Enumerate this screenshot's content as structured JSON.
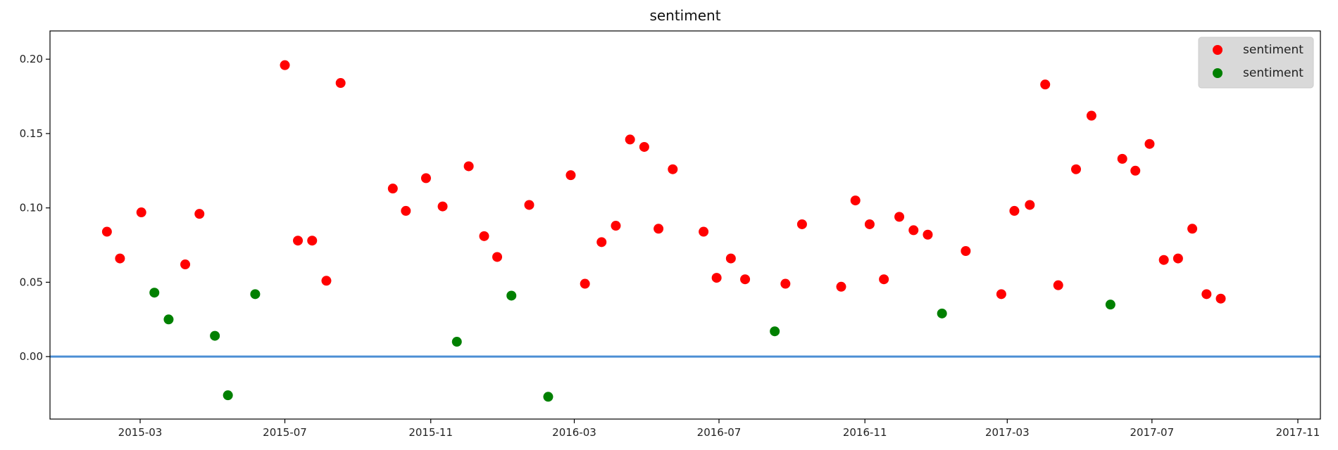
{
  "chart_data": {
    "type": "scatter",
    "title": "sentiment",
    "xlabel": "",
    "ylabel": "",
    "x_ticks": [
      "2015-03",
      "2015-07",
      "2015-11",
      "2016-03",
      "2016-07",
      "2016-11",
      "2017-03",
      "2017-07",
      "2017-11"
    ],
    "y_ticks": [
      "0.00",
      "0.05",
      "0.10",
      "0.15",
      "0.20"
    ],
    "xlim": [
      "2014-12-15",
      "2017-11-20"
    ],
    "ylim": [
      -0.042,
      0.219
    ],
    "grid": false,
    "legend_position": "top-right",
    "reference_line": {
      "y": 0.0,
      "color": "#4c8fd4"
    },
    "series": [
      {
        "name": "sentiment",
        "color": "#ff0000",
        "points": [
          [
            "2015-02-01",
            0.084
          ],
          [
            "2015-02-12",
            0.066
          ],
          [
            "2015-03-02",
            0.097
          ],
          [
            "2015-04-08",
            0.062
          ],
          [
            "2015-04-20",
            0.096
          ],
          [
            "2015-07-01",
            0.196
          ],
          [
            "2015-07-12",
            0.078
          ],
          [
            "2015-07-24",
            0.078
          ],
          [
            "2015-08-05",
            0.051
          ],
          [
            "2015-08-17",
            0.184
          ],
          [
            "2015-09-30",
            0.113
          ],
          [
            "2015-10-11",
            0.098
          ],
          [
            "2015-10-28",
            0.12
          ],
          [
            "2015-11-11",
            0.101
          ],
          [
            "2015-12-03",
            0.128
          ],
          [
            "2015-12-16",
            0.081
          ],
          [
            "2015-12-27",
            0.067
          ],
          [
            "2016-01-23",
            0.102
          ],
          [
            "2016-02-27",
            0.122
          ],
          [
            "2016-03-10",
            0.049
          ],
          [
            "2016-03-24",
            0.077
          ],
          [
            "2016-04-05",
            0.088
          ],
          [
            "2016-04-17",
            0.146
          ],
          [
            "2016-04-29",
            0.141
          ],
          [
            "2016-05-11",
            0.086
          ],
          [
            "2016-05-23",
            0.126
          ],
          [
            "2016-06-18",
            0.084
          ],
          [
            "2016-06-29",
            0.053
          ],
          [
            "2016-07-11",
            0.066
          ],
          [
            "2016-07-23",
            0.052
          ],
          [
            "2016-08-26",
            0.049
          ],
          [
            "2016-09-09",
            0.089
          ],
          [
            "2016-10-12",
            0.047
          ],
          [
            "2016-10-24",
            0.105
          ],
          [
            "2016-11-05",
            0.089
          ],
          [
            "2016-11-17",
            0.052
          ],
          [
            "2016-11-30",
            0.094
          ],
          [
            "2016-12-12",
            0.085
          ],
          [
            "2016-12-24",
            0.082
          ],
          [
            "2017-01-25",
            0.071
          ],
          [
            "2017-02-24",
            0.042
          ],
          [
            "2017-03-07",
            0.098
          ],
          [
            "2017-03-20",
            0.102
          ],
          [
            "2017-04-02",
            0.183
          ],
          [
            "2017-04-13",
            0.048
          ],
          [
            "2017-04-28",
            0.126
          ],
          [
            "2017-05-11",
            0.162
          ],
          [
            "2017-06-06",
            0.133
          ],
          [
            "2017-06-17",
            0.125
          ],
          [
            "2017-06-29",
            0.143
          ],
          [
            "2017-07-11",
            0.065
          ],
          [
            "2017-07-23",
            0.066
          ],
          [
            "2017-08-04",
            0.086
          ],
          [
            "2017-08-16",
            0.042
          ],
          [
            "2017-08-28",
            0.039
          ]
        ]
      },
      {
        "name": "sentiment",
        "color": "#008000",
        "points": [
          [
            "2015-03-13",
            0.043
          ],
          [
            "2015-03-25",
            0.025
          ],
          [
            "2015-05-03",
            0.014
          ],
          [
            "2015-05-14",
            -0.026
          ],
          [
            "2015-06-06",
            0.042
          ],
          [
            "2015-11-23",
            0.01
          ],
          [
            "2016-01-08",
            0.041
          ],
          [
            "2016-02-08",
            -0.027
          ],
          [
            "2016-08-17",
            0.017
          ],
          [
            "2017-01-05",
            0.029
          ],
          [
            "2017-05-27",
            0.035
          ]
        ]
      }
    ]
  }
}
